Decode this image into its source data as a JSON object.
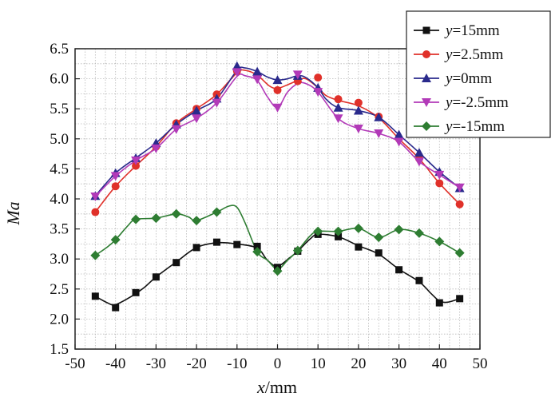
{
  "chart_data": {
    "type": "line",
    "title": "",
    "xlabel": {
      "var": "x",
      "unit": "/mm"
    },
    "ylabel": "Ma",
    "xlim": [
      -50,
      50
    ],
    "ylim": [
      1.5,
      6.5
    ],
    "x_ticks": [
      -50,
      -40,
      -30,
      -20,
      -10,
      0,
      10,
      20,
      30,
      40,
      50
    ],
    "y_ticks": [
      "1.5",
      "2.0",
      "2.5",
      "3.0",
      "3.5",
      "4.0",
      "4.5",
      "5.0",
      "5.5",
      "6.0",
      "6.5"
    ],
    "grid": true,
    "grid_style": "dotted",
    "legend_position": "top-right",
    "legend_var": "y",
    "x": [
      -45,
      -40,
      -35,
      -30,
      -25,
      -20,
      -15,
      -10,
      -5,
      0,
      5,
      10,
      15,
      20,
      25,
      30,
      35,
      40,
      45
    ],
    "series": [
      {
        "name": "=15mm",
        "color": "#111111",
        "marker": "square",
        "values": [
          2.38,
          2.19,
          2.44,
          2.7,
          2.94,
          3.19,
          3.28,
          3.24,
          3.21,
          2.86,
          3.13,
          3.41,
          3.37,
          3.2,
          3.1,
          2.82,
          2.64,
          2.27,
          2.34
        ],
        "curve": [
          [
            -45,
            2.38
          ],
          [
            -42,
            2.27
          ],
          [
            -40,
            2.24
          ],
          [
            -36,
            2.38
          ],
          [
            -33,
            2.52
          ],
          [
            -30,
            2.7
          ],
          [
            -25,
            2.95
          ],
          [
            -20,
            3.19
          ],
          [
            -15,
            3.27
          ],
          [
            -10,
            3.25
          ],
          [
            -5,
            3.18
          ],
          [
            -2.5,
            2.98
          ],
          [
            0,
            2.88
          ],
          [
            3,
            3.02
          ],
          [
            5,
            3.13
          ],
          [
            8,
            3.33
          ],
          [
            10,
            3.41
          ],
          [
            15,
            3.37
          ],
          [
            20,
            3.22
          ],
          [
            25,
            3.08
          ],
          [
            30,
            2.83
          ],
          [
            35,
            2.62
          ],
          [
            38,
            2.42
          ],
          [
            40,
            2.3
          ],
          [
            42,
            2.28
          ],
          [
            45,
            2.34
          ]
        ]
      },
      {
        "name": "=2.5mm",
        "color": "#e0312a",
        "marker": "circle",
        "values": [
          3.78,
          4.21,
          4.55,
          4.87,
          5.26,
          5.5,
          5.74,
          6.13,
          6.06,
          5.81,
          5.96,
          6.02,
          5.66,
          5.6,
          5.37,
          5.0,
          4.67,
          4.26,
          3.91
        ],
        "curve": [
          [
            -45,
            3.78
          ],
          [
            -40,
            4.21
          ],
          [
            -35,
            4.55
          ],
          [
            -30,
            4.87
          ],
          [
            -25,
            5.26
          ],
          [
            -20,
            5.5
          ],
          [
            -15,
            5.74
          ],
          [
            -10,
            6.1
          ],
          [
            -8,
            6.14
          ],
          [
            -5,
            6.06
          ],
          [
            -2,
            5.88
          ],
          [
            0,
            5.84
          ],
          [
            2.5,
            5.9
          ],
          [
            5,
            5.97
          ],
          [
            7,
            6.0
          ],
          [
            10,
            5.85
          ],
          [
            12,
            5.72
          ],
          [
            15,
            5.64
          ],
          [
            20,
            5.55
          ],
          [
            25,
            5.35
          ],
          [
            30,
            5.0
          ],
          [
            35,
            4.67
          ],
          [
            40,
            4.26
          ],
          [
            45,
            3.91
          ]
        ]
      },
      {
        "name": "=0mm",
        "color": "#2a2a8c",
        "marker": "triangle-up",
        "values": [
          4.05,
          4.43,
          4.68,
          4.93,
          5.24,
          5.47,
          5.67,
          6.21,
          6.12,
          5.98,
          6.05,
          5.85,
          5.52,
          5.47,
          5.36,
          5.07,
          4.77,
          4.45,
          4.18
        ],
        "curve": [
          [
            -45,
            4.05
          ],
          [
            -40,
            4.43
          ],
          [
            -35,
            4.68
          ],
          [
            -30,
            4.93
          ],
          [
            -25,
            5.24
          ],
          [
            -20,
            5.47
          ],
          [
            -15,
            5.67
          ],
          [
            -10,
            6.14
          ],
          [
            -8,
            6.18
          ],
          [
            -5,
            6.12
          ],
          [
            -2.5,
            6.03
          ],
          [
            0,
            5.98
          ],
          [
            2.5,
            6.0
          ],
          [
            5,
            6.05
          ],
          [
            7,
            6.02
          ],
          [
            10,
            5.85
          ],
          [
            12,
            5.66
          ],
          [
            15,
            5.52
          ],
          [
            20,
            5.47
          ],
          [
            25,
            5.36
          ],
          [
            30,
            5.07
          ],
          [
            35,
            4.77
          ],
          [
            40,
            4.45
          ],
          [
            45,
            4.18
          ]
        ]
      },
      {
        "name": "=-2.5mm",
        "color": "#b23ab8",
        "marker": "triangle-down",
        "values": [
          4.04,
          4.38,
          4.64,
          4.84,
          5.16,
          5.34,
          5.6,
          6.11,
          5.99,
          5.52,
          6.07,
          5.78,
          5.34,
          5.17,
          5.09,
          4.95,
          4.62,
          4.4,
          4.19
        ],
        "curve": [
          [
            -45,
            4.04
          ],
          [
            -40,
            4.38
          ],
          [
            -35,
            4.64
          ],
          [
            -30,
            4.84
          ],
          [
            -25,
            5.16
          ],
          [
            -20,
            5.34
          ],
          [
            -15,
            5.6
          ],
          [
            -10,
            6.04
          ],
          [
            -8,
            6.05
          ],
          [
            -5,
            5.97
          ],
          [
            -2.5,
            5.7
          ],
          [
            0,
            5.52
          ],
          [
            2.5,
            5.78
          ],
          [
            5,
            5.92
          ],
          [
            7,
            5.92
          ],
          [
            10,
            5.78
          ],
          [
            15,
            5.34
          ],
          [
            20,
            5.17
          ],
          [
            25,
            5.09
          ],
          [
            30,
            4.95
          ],
          [
            35,
            4.62
          ],
          [
            40,
            4.4
          ],
          [
            45,
            4.19
          ]
        ]
      },
      {
        "name": "=-15mm",
        "color": "#2e7d32",
        "marker": "diamond",
        "values": [
          3.06,
          3.32,
          3.66,
          3.68,
          3.75,
          3.64,
          3.78,
          null,
          3.12,
          2.8,
          3.14,
          3.46,
          3.46,
          3.51,
          3.36,
          3.49,
          3.43,
          3.29,
          3.1
        ],
        "curve": [
          [
            -45,
            3.06
          ],
          [
            -42,
            3.2
          ],
          [
            -40,
            3.32
          ],
          [
            -37,
            3.55
          ],
          [
            -35,
            3.66
          ],
          [
            -30,
            3.68
          ],
          [
            -25,
            3.75
          ],
          [
            -22,
            3.7
          ],
          [
            -20,
            3.64
          ],
          [
            -15,
            3.78
          ],
          [
            -12,
            3.88
          ],
          [
            -10,
            3.86
          ],
          [
            -8,
            3.6
          ],
          [
            -5,
            3.12
          ],
          [
            -2.5,
            2.98
          ],
          [
            0,
            2.83
          ],
          [
            2.5,
            2.98
          ],
          [
            5,
            3.14
          ],
          [
            8,
            3.38
          ],
          [
            10,
            3.46
          ],
          [
            15,
            3.46
          ],
          [
            20,
            3.51
          ],
          [
            25,
            3.36
          ],
          [
            30,
            3.49
          ],
          [
            35,
            3.43
          ],
          [
            40,
            3.29
          ],
          [
            45,
            3.1
          ]
        ]
      }
    ]
  }
}
